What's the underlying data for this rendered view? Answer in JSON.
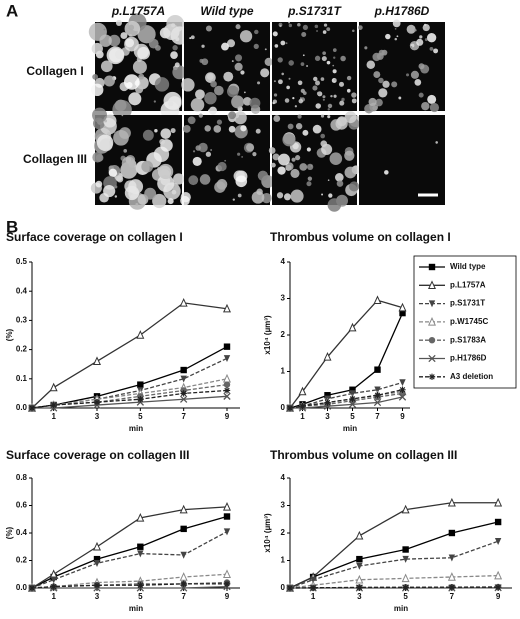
{
  "panel_a": {
    "label": "A",
    "columns": [
      "p.L1757A",
      "Wild type",
      "p.S1731T",
      "p.H1786D"
    ],
    "rows": [
      "Collagen I",
      "Collagen III"
    ]
  },
  "panel_b": {
    "label": "B"
  },
  "chart_data": [
    {
      "type": "line",
      "title": "Surface coverage on collagen I",
      "x_label": "min",
      "y_label": "(%)",
      "x": [
        0,
        1,
        3,
        5,
        7,
        9
      ],
      "xlim": [
        0,
        9.6
      ],
      "xticks": [
        1,
        3,
        5,
        7,
        9
      ],
      "ylim": [
        0,
        0.5
      ],
      "yticks": [
        {
          "value": 0,
          "label": "0.0"
        },
        0.1,
        0.2,
        0.3,
        0.4,
        0.5
      ],
      "series": [
        {
          "name": "Wild type",
          "color": "#000000",
          "marker": "square",
          "dashed": false,
          "values": [
            0,
            0.01,
            0.04,
            0.08,
            0.13,
            0.21
          ]
        },
        {
          "name": "p.L1757A",
          "color": "#333333",
          "marker": "triangle-open",
          "dashed": false,
          "values": [
            0,
            0.07,
            0.16,
            0.25,
            0.36,
            0.34
          ]
        },
        {
          "name": "p.S1731T",
          "color": "#444444",
          "marker": "triangle-down",
          "dashed": true,
          "values": [
            0,
            0.01,
            0.03,
            0.06,
            0.1,
            0.17
          ]
        },
        {
          "name": "p.W1745C",
          "color": "#888888",
          "marker": "triangle-open",
          "dashed": true,
          "values": [
            0,
            0.01,
            0.03,
            0.05,
            0.07,
            0.1
          ]
        },
        {
          "name": "p.S1783A",
          "color": "#666666",
          "marker": "circle",
          "dashed": true,
          "values": [
            0,
            0.01,
            0.02,
            0.04,
            0.06,
            0.08
          ]
        },
        {
          "name": "p.H1786D",
          "color": "#555555",
          "marker": "x",
          "dashed": false,
          "values": [
            0,
            0,
            0.01,
            0.02,
            0.03,
            0.04
          ]
        },
        {
          "name": "A3 deletion",
          "color": "#222222",
          "marker": "star",
          "dashed": true,
          "values": [
            0,
            0.01,
            0.02,
            0.03,
            0.05,
            0.06
          ]
        }
      ]
    },
    {
      "type": "line",
      "title": "Thrombus volume on collagen I",
      "x_label": "min",
      "y_label": "x10⁴ (µm³)",
      "x": [
        0,
        1,
        3,
        5,
        7,
        9
      ],
      "xlim": [
        0,
        9.6
      ],
      "xticks": [
        1,
        3,
        5,
        7,
        9
      ],
      "ylim": [
        0,
        4
      ],
      "yticks": [
        0,
        1,
        2,
        3,
        4
      ],
      "series": [
        {
          "values": [
            0,
            0.1,
            0.35,
            0.5,
            1.05,
            2.6
          ]
        },
        {
          "values": [
            0,
            0.45,
            1.4,
            2.2,
            2.95,
            2.75
          ]
        },
        {
          "values": [
            0,
            0.05,
            0.25,
            0.4,
            0.5,
            0.7
          ]
        },
        {
          "values": [
            0,
            0.05,
            0.15,
            0.25,
            0.35,
            0.45
          ]
        },
        {
          "values": [
            0,
            0.05,
            0.1,
            0.2,
            0.3,
            0.4
          ]
        },
        {
          "values": [
            0,
            0,
            0.05,
            0.1,
            0.15,
            0.3
          ]
        },
        {
          "values": [
            0,
            0.05,
            0.15,
            0.25,
            0.35,
            0.5
          ]
        }
      ]
    },
    {
      "type": "line",
      "title": "Surface coverage on collagen III",
      "x_label": "min",
      "y_label": "(%)",
      "x": [
        0,
        1,
        3,
        5,
        7,
        9
      ],
      "xlim": [
        0,
        9.6
      ],
      "xticks": [
        1,
        3,
        5,
        7,
        9
      ],
      "ylim": [
        0,
        0.8
      ],
      "yticks": [
        {
          "value": 0,
          "label": "0.0"
        },
        0.2,
        0.4,
        0.6,
        0.8
      ],
      "series": [
        {
          "values": [
            0,
            0.08,
            0.21,
            0.3,
            0.43,
            0.52
          ]
        },
        {
          "values": [
            0,
            0.1,
            0.3,
            0.51,
            0.57,
            0.59
          ]
        },
        {
          "values": [
            0,
            0.06,
            0.18,
            0.25,
            0.24,
            0.41
          ]
        },
        {
          "values": [
            0,
            0.01,
            0.04,
            0.05,
            0.08,
            0.1
          ]
        },
        {
          "values": [
            0,
            0.01,
            0.02,
            0.03,
            0.03,
            0.04
          ]
        },
        {
          "values": [
            0,
            0,
            0,
            0,
            0,
            0.01
          ]
        },
        {
          "values": [
            0,
            0.01,
            0.02,
            0.02,
            0.03,
            0.03
          ]
        }
      ]
    },
    {
      "type": "line",
      "title": "Thrombus volume on collagen III",
      "x_label": "min",
      "y_label": "x10⁴ (µm³)",
      "x": [
        0,
        1,
        3,
        5,
        7,
        9
      ],
      "xlim": [
        0,
        9.6
      ],
      "xticks": [
        1,
        3,
        5,
        7,
        9
      ],
      "ylim": [
        0,
        4
      ],
      "yticks": [
        0,
        1,
        2,
        3,
        4
      ],
      "series": [
        {
          "values": [
            0,
            0.4,
            1.05,
            1.4,
            2.0,
            2.4
          ]
        },
        {
          "values": [
            0,
            0.4,
            1.9,
            2.85,
            3.1,
            3.1
          ]
        },
        {
          "values": [
            0,
            0.3,
            0.8,
            1.05,
            1.1,
            1.7
          ]
        },
        {
          "values": [
            0,
            0.1,
            0.3,
            0.35,
            0.4,
            0.45
          ]
        },
        {
          "values": [
            0,
            0,
            0.02,
            0.03,
            0.03,
            0.04
          ]
        },
        {
          "values": [
            0,
            0,
            0,
            0,
            0,
            0.01
          ]
        },
        {
          "values": [
            0,
            0.01,
            0.02,
            0.02,
            0.03,
            0.03
          ]
        }
      ]
    }
  ]
}
